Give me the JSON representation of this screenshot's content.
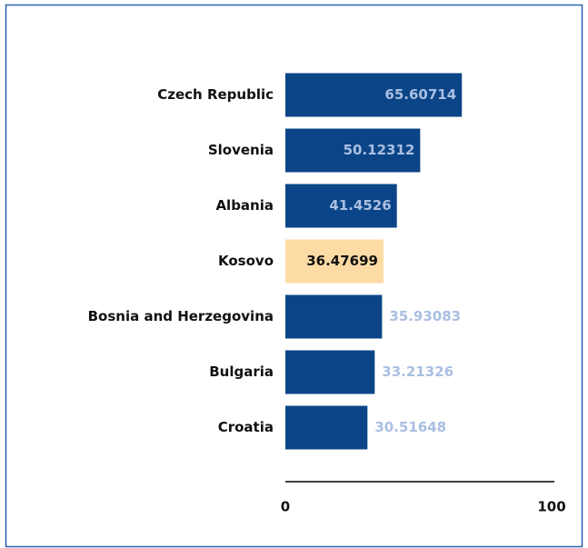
{
  "chart_data": {
    "type": "bar",
    "orientation": "horizontal",
    "categories": [
      "Czech Republic",
      "Slovenia",
      "Albania",
      "Kosovo",
      "Bosnia and Herzegovina",
      "Bulgaria",
      "Croatia"
    ],
    "values": [
      65.60714,
      50.12312,
      41.4526,
      36.47699,
      35.93083,
      33.21326,
      30.51648
    ],
    "colors": [
      "#0b4587",
      "#0b4587",
      "#0b4587",
      "#fddba4",
      "#0b4587",
      "#0b4587",
      "#0b4587"
    ],
    "label_colors": [
      "#a9bfe2",
      "#a9bfe2",
      "#a9bfe2",
      "#111111",
      "#a9bfe2",
      "#a9bfe2",
      "#a9bfe2"
    ],
    "label_position": [
      "inside",
      "inside",
      "inside",
      "inside",
      "outside",
      "outside",
      "outside"
    ],
    "xlim": [
      0,
      100
    ],
    "xticks": [
      0,
      100
    ]
  }
}
